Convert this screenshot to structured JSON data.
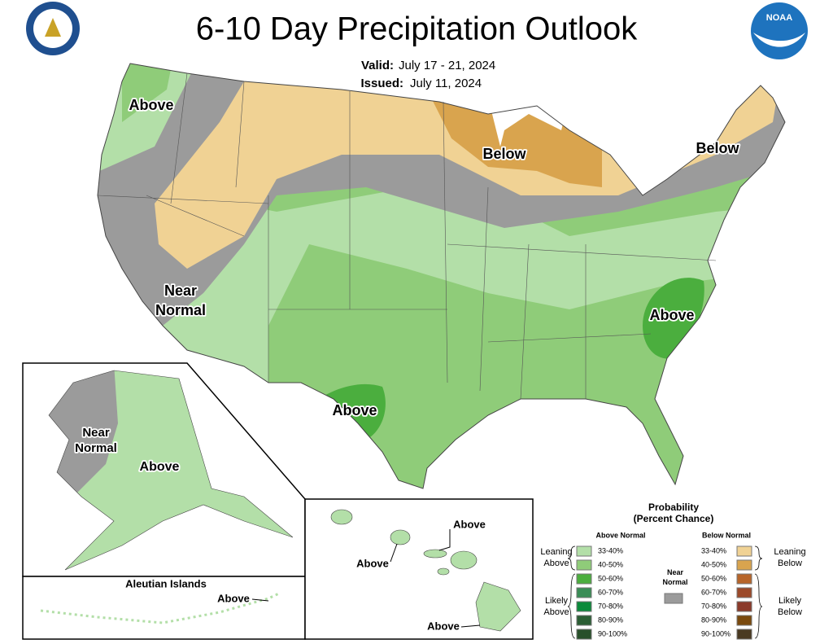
{
  "header": {
    "title": "6-10 Day Precipitation Outlook",
    "valid_label": "Valid:",
    "valid": "July 17 - 21, 2024",
    "issued_label": "Issued:",
    "issued": "July 11, 2024",
    "logo_text": "NOAA"
  },
  "conus_labels": [
    [
      "Above"
    ],
    [
      "Below"
    ],
    [
      "Below"
    ],
    [
      "Near",
      "Normal"
    ],
    [
      "Above"
    ],
    [
      "Above"
    ]
  ],
  "alaska_labels": [
    [
      "Near",
      "Normal"
    ],
    [
      "Above"
    ]
  ],
  "aleutian": {
    "title": "Aleutian Islands",
    "label": "Above"
  },
  "hawaii_labels": [
    "Above",
    "Above",
    "Above"
  ],
  "legend": {
    "title": [
      "Probability",
      "(Percent Chance)"
    ],
    "above_header": "Above Normal",
    "below_header": "Below Normal",
    "near_normal": [
      "Near",
      "Normal"
    ],
    "near_color": "#9b9b9b",
    "above_groups": [
      [
        "Leaning",
        "Above"
      ],
      [
        "Likely",
        "Above"
      ]
    ],
    "below_groups": [
      [
        "Leaning",
        "Below"
      ],
      [
        "Likely",
        "Below"
      ]
    ],
    "above_rows": [
      {
        "label": "33-40%",
        "color": "#b3dfa8"
      },
      {
        "label": "40-50%",
        "color": "#8fcc79"
      },
      {
        "label": "50-60%",
        "color": "#4bae3e"
      },
      {
        "label": "60-70%",
        "color": "#3a8d56"
      },
      {
        "label": "70-80%",
        "color": "#0b8a3b"
      },
      {
        "label": "80-90%",
        "color": "#2b5e34"
      },
      {
        "label": "90-100%",
        "color": "#28502a"
      }
    ],
    "below_rows": [
      {
        "label": "33-40%",
        "color": "#f0d294"
      },
      {
        "label": "40-50%",
        "color": "#d9a44e"
      },
      {
        "label": "50-60%",
        "color": "#b7652a"
      },
      {
        "label": "60-70%",
        "color": "#9c4a2a"
      },
      {
        "label": "70-80%",
        "color": "#8b3a2a"
      },
      {
        "label": "80-90%",
        "color": "#7a4a0e"
      },
      {
        "label": "90-100%",
        "color": "#4a3a22"
      }
    ]
  }
}
